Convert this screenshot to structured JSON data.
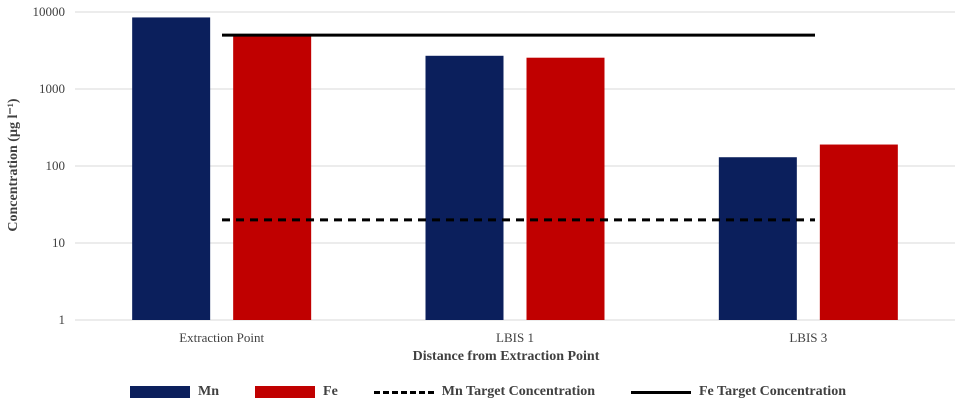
{
  "chart_data": {
    "type": "bar",
    "yscale": "log",
    "ylim": [
      1,
      10000
    ],
    "yticks": [
      1,
      10,
      100,
      1000,
      10000
    ],
    "ytick_labels": [
      "1",
      "10",
      "100",
      "1000",
      "10000"
    ],
    "categories": [
      "Extraction Point",
      "LBIS 1",
      "LBIS 3"
    ],
    "series": [
      {
        "name": "Mn",
        "values": [
          8500,
          2700,
          130
        ],
        "color": "#0b1f5c"
      },
      {
        "name": "Fe",
        "values": [
          4900,
          2550,
          190
        ],
        "color": "#c00000"
      }
    ],
    "reference_lines": [
      {
        "name": "Mn Target Concentration",
        "value": 20,
        "style": "dashed",
        "color": "#000000"
      },
      {
        "name": "Fe Target Concentration",
        "value": 5000,
        "style": "solid",
        "color": "#000000"
      }
    ],
    "xlabel": "Distance from Extraction Point",
    "ylabel": "Concentration (µg l⁻¹)",
    "grid": true,
    "legend_position": "bottom"
  }
}
